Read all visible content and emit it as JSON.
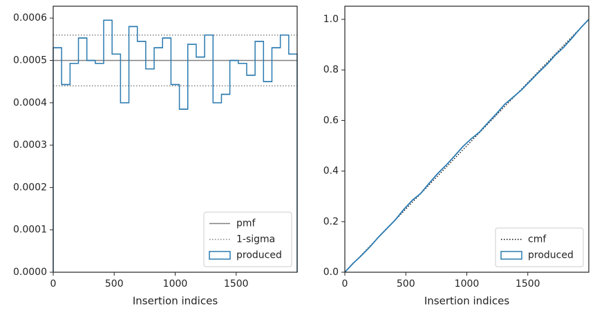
{
  "chart_data": [
    {
      "type": "histogram",
      "xlabel": "Insertion indices",
      "bins": [
        0,
        68.97,
        137.93,
        206.9,
        275.86,
        344.83,
        413.79,
        482.76,
        551.72,
        620.69,
        689.66,
        758.62,
        827.59,
        896.55,
        965.52,
        1034.48,
        1103.45,
        1172.41,
        1241.38,
        1310.34,
        1379.31,
        1448.28,
        1517.24,
        1586.21,
        1655.17,
        1724.14,
        1793.1,
        1862.07,
        1931.03,
        2000
      ],
      "series": [
        {
          "name": "produced",
          "color": "#2a7ab0",
          "values": [
            0.00053,
            0.000443,
            0.000493,
            0.000553,
            0.0005,
            0.000493,
            0.000595,
            0.000515,
            0.0004,
            0.00058,
            0.000545,
            0.00048,
            0.00053,
            0.000553,
            0.000443,
            0.000385,
            0.000538,
            0.000508,
            0.00056,
            0.0004,
            0.00042,
            0.0005,
            0.000493,
            0.000465,
            0.000545,
            0.00045,
            0.00053,
            0.00056,
            0.000515
          ]
        }
      ],
      "reference_lines": [
        {
          "name": "pmf",
          "color": "#808080",
          "style": "solid",
          "values": [
            0.0005
          ]
        },
        {
          "name": "1-sigma",
          "color": "#808080",
          "style": "dotted",
          "values": [
            0.00044,
            0.00056
          ]
        }
      ],
      "xlim": [
        0,
        2000
      ],
      "ylim": [
        0,
        0.000628
      ],
      "xticks": [
        0,
        500,
        1000,
        1500
      ],
      "yticks": [
        {
          "value": 0,
          "label": "0.0000"
        },
        {
          "value": 0.0001,
          "label": "0.0001"
        },
        {
          "value": 0.0002,
          "label": "0.0002"
        },
        {
          "value": 0.0003,
          "label": "0.0003"
        },
        {
          "value": 0.0004,
          "label": "0.0004"
        },
        {
          "value": 0.0005,
          "label": "0.0005"
        },
        {
          "value": 0.0006,
          "label": "0.0006"
        }
      ],
      "legend": "lower right"
    },
    {
      "type": "line",
      "xlabel": "Insertion indices",
      "series": [
        {
          "name": "cmf",
          "color": "#000000",
          "style": "dotted",
          "x": [
            0,
            2000
          ],
          "values": [
            0,
            1
          ]
        },
        {
          "name": "produced",
          "color": "#2a7ab0",
          "style": "solid",
          "x": [
            0,
            68.97,
            137.93,
            206.9,
            275.86,
            344.83,
            413.79,
            482.76,
            551.72,
            620.69,
            689.66,
            758.62,
            827.59,
            896.55,
            965.52,
            1034.48,
            1103.45,
            1172.41,
            1241.38,
            1310.34,
            1379.31,
            1448.28,
            1517.24,
            1586.21,
            1655.17,
            1724.14,
            1793.1,
            1862.07,
            1931.03,
            2000
          ],
          "values": [
            0,
            0.036,
            0.067,
            0.101,
            0.139,
            0.173,
            0.207,
            0.248,
            0.284,
            0.311,
            0.351,
            0.389,
            0.422,
            0.458,
            0.496,
            0.527,
            0.554,
            0.591,
            0.626,
            0.664,
            0.692,
            0.721,
            0.755,
            0.789,
            0.821,
            0.858,
            0.889,
            0.926,
            0.965,
            1
          ]
        }
      ],
      "xlim": [
        0,
        2000
      ],
      "ylim": [
        0,
        1.052
      ],
      "xticks": [
        0,
        500,
        1000,
        1500
      ],
      "yticks": [
        {
          "value": 0,
          "label": "0.0"
        },
        {
          "value": 0.2,
          "label": "0.2"
        },
        {
          "value": 0.4,
          "label": "0.4"
        },
        {
          "value": 0.6,
          "label": "0.6"
        },
        {
          "value": 0.8,
          "label": "0.8"
        },
        {
          "value": 1,
          "label": "1.0"
        }
      ],
      "legend": "lower right"
    }
  ]
}
